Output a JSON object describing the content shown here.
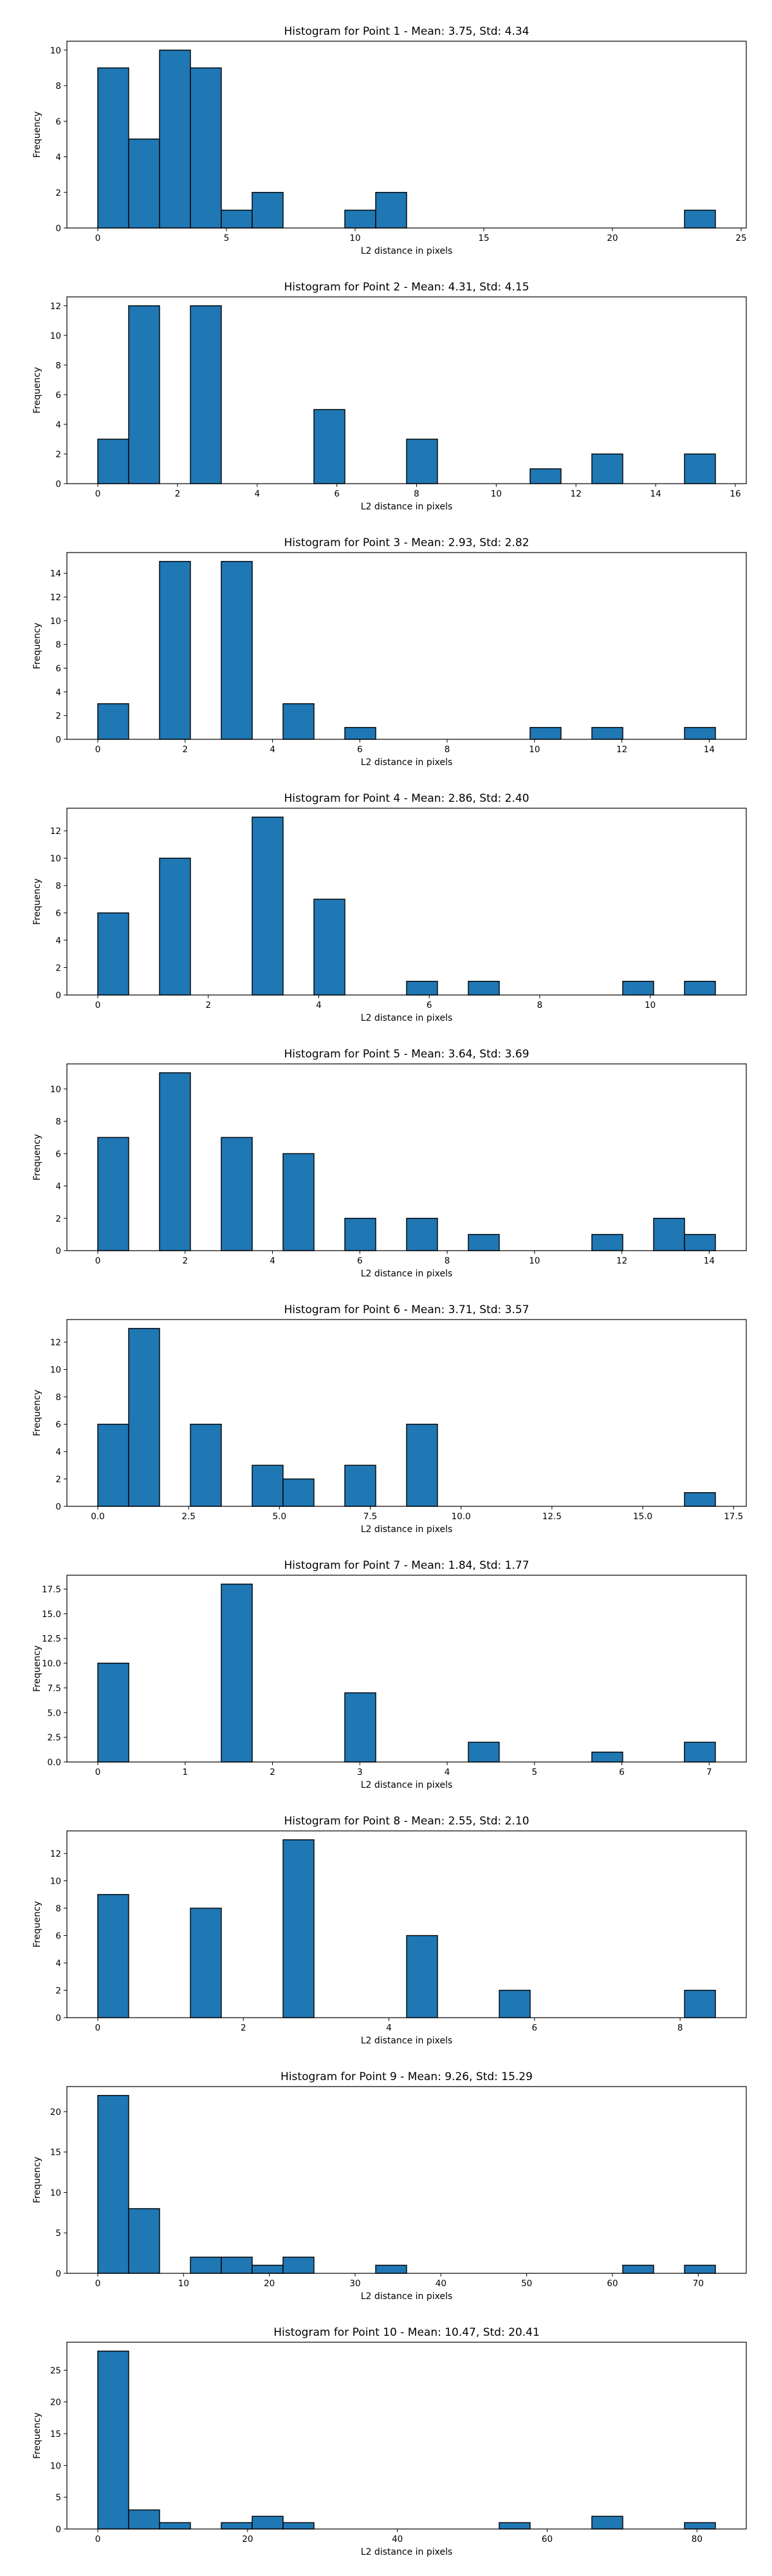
{
  "chart_data": [
    {
      "type": "bar",
      "title": "Histogram for Point 1 - Mean: 3.75, Std: 4.34",
      "xlabel": "L2 distance in pixels",
      "ylabel": "Frequency",
      "bins": [
        [
          0,
          1.2,
          9
        ],
        [
          1.2,
          2.4,
          5
        ],
        [
          2.4,
          3.6,
          10
        ],
        [
          3.6,
          4.8,
          9
        ],
        [
          4.8,
          6.0,
          1
        ],
        [
          6.0,
          7.2,
          2
        ],
        [
          9.6,
          10.8,
          1
        ],
        [
          10.8,
          12.0,
          2
        ],
        [
          22.8,
          24.0,
          1
        ]
      ],
      "xlim": [
        -1.2,
        25.2
      ],
      "ylim": [
        0,
        10.5
      ],
      "xticks": [
        0,
        5,
        10,
        15,
        20,
        25
      ],
      "xtick_labels": [
        "0",
        "5",
        "10",
        "15",
        "20",
        "25"
      ],
      "yticks": [
        0,
        2,
        4,
        6,
        8,
        10
      ],
      "ytick_labels": [
        "0",
        "2",
        "4",
        "6",
        "8",
        "10"
      ]
    },
    {
      "type": "bar",
      "title": "Histogram for Point 2 - Mean: 4.31, Std: 4.15",
      "xlabel": "L2 distance in pixels",
      "ylabel": "Frequency",
      "bins": [
        [
          0,
          0.775,
          3
        ],
        [
          0.775,
          1.55,
          12
        ],
        [
          2.325,
          3.1,
          12
        ],
        [
          5.425,
          6.2,
          5
        ],
        [
          7.75,
          8.525,
          3
        ],
        [
          10.85,
          11.625,
          1
        ],
        [
          12.4,
          13.175,
          2
        ],
        [
          14.725,
          15.5,
          2
        ]
      ],
      "xlim": [
        -0.775,
        16.275
      ],
      "ylim": [
        0,
        12.6
      ],
      "xticks": [
        0,
        2,
        4,
        6,
        8,
        10,
        12,
        14,
        16
      ],
      "xtick_labels": [
        "0",
        "2",
        "4",
        "6",
        "8",
        "10",
        "12",
        "14",
        "16"
      ],
      "yticks": [
        0,
        2,
        4,
        6,
        8,
        10,
        12
      ],
      "ytick_labels": [
        "0",
        "2",
        "4",
        "6",
        "8",
        "10",
        "12"
      ]
    },
    {
      "type": "bar",
      "title": "Histogram for Point 3 - Mean: 2.93, Std: 2.82",
      "xlabel": "L2 distance in pixels",
      "ylabel": "Frequency",
      "bins": [
        [
          0,
          0.707,
          3
        ],
        [
          1.414,
          2.121,
          15
        ],
        [
          2.828,
          3.536,
          15
        ],
        [
          4.243,
          4.95,
          3
        ],
        [
          5.657,
          6.364,
          1
        ],
        [
          9.899,
          10.607,
          1
        ],
        [
          11.314,
          12.021,
          1
        ],
        [
          13.435,
          14.142,
          1
        ]
      ],
      "xlim": [
        -0.707,
        14.849
      ],
      "ylim": [
        0,
        15.75
      ],
      "xticks": [
        0,
        2,
        4,
        6,
        8,
        10,
        12,
        14
      ],
      "xtick_labels": [
        "0",
        "2",
        "4",
        "6",
        "8",
        "10",
        "12",
        "14"
      ],
      "yticks": [
        0,
        2,
        4,
        6,
        8,
        10,
        12,
        14
      ],
      "ytick_labels": [
        "0",
        "2",
        "4",
        "6",
        "8",
        "10",
        "12",
        "14"
      ]
    },
    {
      "type": "bar",
      "title": "Histogram for Point 4 - Mean: 2.86, Std: 2.40",
      "xlabel": "L2 distance in pixels",
      "ylabel": "Frequency",
      "bins": [
        [
          0,
          0.559,
          6
        ],
        [
          1.118,
          1.677,
          10
        ],
        [
          2.795,
          3.354,
          13
        ],
        [
          3.913,
          4.472,
          7
        ],
        [
          5.59,
          6.149,
          1
        ],
        [
          6.708,
          7.267,
          1
        ],
        [
          9.503,
          10.062,
          1
        ],
        [
          10.621,
          11.18,
          1
        ]
      ],
      "xlim": [
        -0.559,
        11.739
      ],
      "ylim": [
        0,
        13.65
      ],
      "xticks": [
        0,
        2,
        4,
        6,
        8,
        10
      ],
      "xtick_labels": [
        "0",
        "2",
        "4",
        "6",
        "8",
        "10"
      ],
      "yticks": [
        0,
        2,
        4,
        6,
        8,
        10,
        12
      ],
      "ytick_labels": [
        "0",
        "2",
        "4",
        "6",
        "8",
        "10",
        "12"
      ]
    },
    {
      "type": "bar",
      "title": "Histogram for Point 5 - Mean: 3.64, Std: 3.69",
      "xlabel": "L2 distance in pixels",
      "ylabel": "Frequency",
      "bins": [
        [
          0,
          0.707,
          7
        ],
        [
          1.414,
          2.121,
          11
        ],
        [
          2.828,
          3.536,
          7
        ],
        [
          4.243,
          4.95,
          6
        ],
        [
          5.657,
          6.364,
          2
        ],
        [
          7.071,
          7.778,
          2
        ],
        [
          8.485,
          9.192,
          1
        ],
        [
          11.314,
          12.021,
          1
        ],
        [
          12.728,
          13.435,
          2
        ],
        [
          13.435,
          14.142,
          1
        ]
      ],
      "xlim": [
        -0.707,
        14.849
      ],
      "ylim": [
        0,
        11.55
      ],
      "xticks": [
        0,
        2,
        4,
        6,
        8,
        10,
        12,
        14
      ],
      "xtick_labels": [
        "0",
        "2",
        "4",
        "6",
        "8",
        "10",
        "12",
        "14"
      ],
      "yticks": [
        0,
        2,
        4,
        6,
        8,
        10
      ],
      "ytick_labels": [
        "0",
        "2",
        "4",
        "6",
        "8",
        "10"
      ]
    },
    {
      "type": "bar",
      "title": "Histogram for Point 6 - Mean: 3.71, Std: 3.57",
      "xlabel": "L2 distance in pixels",
      "ylabel": "Frequency",
      "bins": [
        [
          0,
          0.85,
          6
        ],
        [
          0.85,
          1.7,
          13
        ],
        [
          2.55,
          3.4,
          6
        ],
        [
          4.25,
          5.1,
          3
        ],
        [
          5.1,
          5.95,
          2
        ],
        [
          6.8,
          7.65,
          3
        ],
        [
          8.5,
          9.35,
          6
        ],
        [
          16.15,
          17.0,
          1
        ]
      ],
      "xlim": [
        -0.85,
        17.85
      ],
      "ylim": [
        0,
        13.65
      ],
      "xticks": [
        0,
        2.5,
        5,
        7.5,
        10,
        12.5,
        15,
        17.5
      ],
      "xtick_labels": [
        "0.0",
        "2.5",
        "5.0",
        "7.5",
        "10.0",
        "12.5",
        "15.0",
        "17.5"
      ],
      "yticks": [
        0,
        2,
        4,
        6,
        8,
        10,
        12
      ],
      "ytick_labels": [
        "0",
        "2",
        "4",
        "6",
        "8",
        "10",
        "12"
      ]
    },
    {
      "type": "bar",
      "title": "Histogram for Point 7 - Mean: 1.84, Std: 1.77",
      "xlabel": "L2 distance in pixels",
      "ylabel": "Frequency",
      "bins": [
        [
          0,
          0.354,
          10
        ],
        [
          1.414,
          1.768,
          18
        ],
        [
          2.828,
          3.182,
          7
        ],
        [
          4.243,
          4.596,
          2
        ],
        [
          5.657,
          6.01,
          1
        ],
        [
          6.717,
          7.071,
          2
        ]
      ],
      "xlim": [
        -0.354,
        7.425
      ],
      "ylim": [
        0,
        18.9
      ],
      "xticks": [
        0,
        1,
        2,
        3,
        4,
        5,
        6,
        7
      ],
      "xtick_labels": [
        "0",
        "1",
        "2",
        "3",
        "4",
        "5",
        "6",
        "7"
      ],
      "yticks": [
        0,
        2.5,
        5,
        7.5,
        10,
        12.5,
        15,
        17.5
      ],
      "ytick_labels": [
        "0.0",
        "2.5",
        "5.0",
        "7.5",
        "10.0",
        "12.5",
        "15.0",
        "17.5"
      ]
    },
    {
      "type": "bar",
      "title": "Histogram for Point 8 - Mean: 2.55, Std: 2.10",
      "xlabel": "L2 distance in pixels",
      "ylabel": "Frequency",
      "bins": [
        [
          0,
          0.424,
          9
        ],
        [
          1.273,
          1.697,
          8
        ],
        [
          2.546,
          2.97,
          13
        ],
        [
          4.243,
          4.667,
          6
        ],
        [
          5.516,
          5.94,
          2
        ],
        [
          8.061,
          8.485,
          2
        ]
      ],
      "xlim": [
        -0.424,
        8.909
      ],
      "ylim": [
        0,
        13.65
      ],
      "xticks": [
        0,
        2,
        4,
        6,
        8
      ],
      "xtick_labels": [
        "0",
        "2",
        "4",
        "6",
        "8"
      ],
      "yticks": [
        0,
        2,
        4,
        6,
        8,
        10,
        12
      ],
      "ytick_labels": [
        "0",
        "2",
        "4",
        "6",
        "8",
        "10",
        "12"
      ]
    },
    {
      "type": "bar",
      "title": "Histogram for Point 9 - Mean: 9.26, Std: 15.29",
      "xlabel": "L2 distance in pixels",
      "ylabel": "Frequency",
      "bins": [
        [
          0,
          3.6,
          22
        ],
        [
          3.6,
          7.2,
          8
        ],
        [
          10.8,
          14.4,
          2
        ],
        [
          14.4,
          18.0,
          2
        ],
        [
          18.0,
          21.6,
          1
        ],
        [
          21.6,
          25.2,
          2
        ],
        [
          32.4,
          36.0,
          1
        ],
        [
          61.2,
          64.8,
          1
        ],
        [
          68.4,
          72.0,
          1
        ]
      ],
      "xlim": [
        -3.6,
        75.6
      ],
      "ylim": [
        0,
        23.1
      ],
      "xticks": [
        0,
        10,
        20,
        30,
        40,
        50,
        60,
        70
      ],
      "xtick_labels": [
        "0",
        "10",
        "20",
        "30",
        "40",
        "50",
        "60",
        "70"
      ],
      "yticks": [
        0,
        5,
        10,
        15,
        20
      ],
      "ytick_labels": [
        "0",
        "5",
        "10",
        "15",
        "20"
      ]
    },
    {
      "type": "bar",
      "title": "Histogram for Point 10 - Mean: 10.47, Std: 20.41",
      "xlabel": "L2 distance in pixels",
      "ylabel": "Frequency",
      "bins": [
        [
          0,
          4.123,
          28
        ],
        [
          4.123,
          8.246,
          3
        ],
        [
          8.246,
          12.369,
          1
        ],
        [
          16.492,
          20.615,
          1
        ],
        [
          20.615,
          24.738,
          2
        ],
        [
          24.738,
          28.861,
          1
        ],
        [
          53.6,
          57.723,
          1
        ],
        [
          65.969,
          70.092,
          2
        ],
        [
          78.338,
          82.462,
          1
        ]
      ],
      "xlim": [
        -4.123,
        86.585
      ],
      "ylim": [
        0,
        29.4
      ],
      "xticks": [
        0,
        20,
        40,
        60,
        80
      ],
      "xtick_labels": [
        "0",
        "20",
        "40",
        "60",
        "80"
      ],
      "yticks": [
        0,
        5,
        10,
        15,
        20,
        25
      ],
      "ytick_labels": [
        "0",
        "5",
        "10",
        "15",
        "20",
        "25"
      ]
    }
  ]
}
